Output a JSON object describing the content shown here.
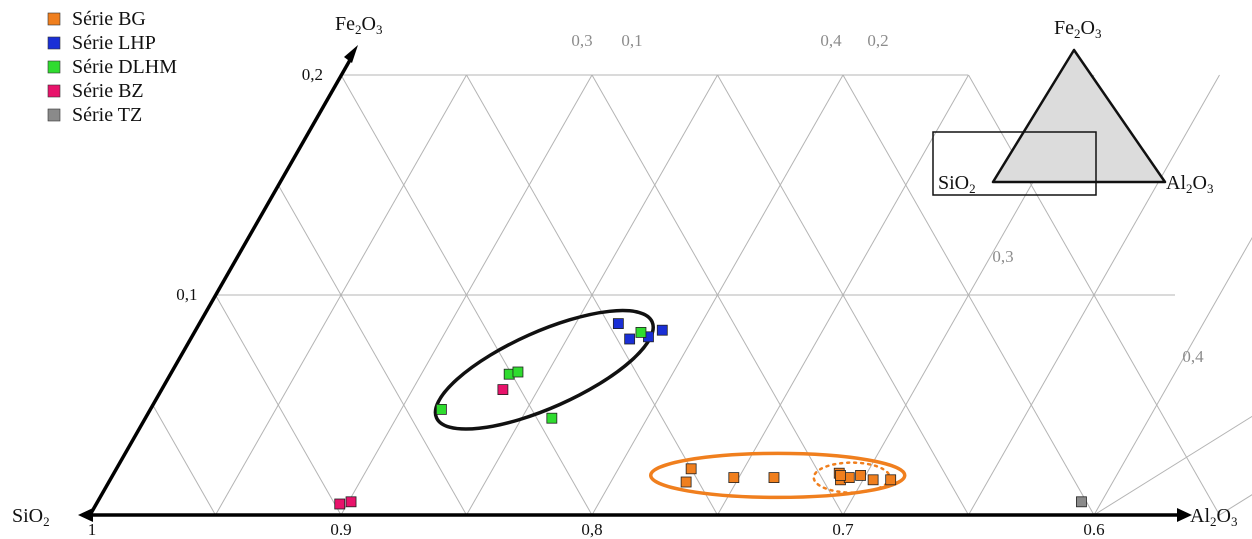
{
  "chart_data": {
    "type": "scatter",
    "coordinate_system": "ternary",
    "axes": {
      "bottom_left": {
        "label": "SiO",
        "sub": "2"
      },
      "bottom_right": {
        "label": "Al",
        "sub": "2",
        "label2": "O",
        "sub2": "3"
      },
      "top": {
        "label": "Fe",
        "sub": "2",
        "label2": "O",
        "sub2": "3"
      }
    },
    "ticks": {
      "sio2": [
        {
          "value": 1,
          "label": "1"
        },
        {
          "value": 0.9,
          "label": "0.9"
        },
        {
          "value": 0.8,
          "label": "0,8"
        },
        {
          "value": 0.7,
          "label": "0.7"
        },
        {
          "value": 0.6,
          "label": "0.6"
        }
      ],
      "fe2o3": [
        {
          "value": 0.1,
          "label": "0,1"
        },
        {
          "value": 0.2,
          "label": "0,2"
        }
      ],
      "al2o3_top": [
        {
          "value": 0.1,
          "label": "0,1"
        },
        {
          "value": 0.2,
          "label": "0,2"
        },
        {
          "value": 0.3,
          "label": "0,3"
        },
        {
          "value": 0.4,
          "label": "0,4"
        }
      ],
      "al2o3_upper": [
        {
          "value": 0.3,
          "label": "0,3"
        },
        {
          "value": 0.4,
          "label": "0,4"
        }
      ]
    },
    "series": [
      {
        "name": "Série BG",
        "color": "#f07f1e",
        "points": [
          {
            "sio2": 0.755,
            "al2o3": 0.23,
            "fe2o3": 0.015
          },
          {
            "sio2": 0.75,
            "al2o3": 0.229,
            "fe2o3": 0.021
          },
          {
            "sio2": 0.735,
            "al2o3": 0.248,
            "fe2o3": 0.017
          },
          {
            "sio2": 0.719,
            "al2o3": 0.264,
            "fe2o3": 0.017
          },
          {
            "sio2": 0.694,
            "al2o3": 0.291,
            "fe2o3": 0.016
          },
          {
            "sio2": 0.689,
            "al2o3": 0.294,
            "fe2o3": 0.017
          },
          {
            "sio2": 0.684,
            "al2o3": 0.298,
            "fe2o3": 0.018
          },
          {
            "sio2": 0.681,
            "al2o3": 0.304,
            "fe2o3": 0.016
          },
          {
            "sio2": 0.674,
            "al2o3": 0.311,
            "fe2o3": 0.016
          },
          {
            "sio2": 0.692,
            "al2o3": 0.289,
            "fe2o3": 0.019
          },
          {
            "sio2": 0.691,
            "al2o3": 0.29,
            "fe2o3": 0.018
          }
        ]
      },
      {
        "name": "Série LHP",
        "color": "#1a2fd6",
        "points": [
          {
            "sio2": 0.746,
            "al2o3": 0.167,
            "fe2o3": 0.087
          },
          {
            "sio2": 0.745,
            "al2o3": 0.175,
            "fe2o3": 0.08
          },
          {
            "sio2": 0.737,
            "al2o3": 0.182,
            "fe2o3": 0.081
          },
          {
            "sio2": 0.73,
            "al2o3": 0.186,
            "fe2o3": 0.084
          }
        ]
      },
      {
        "name": "Série DLHM",
        "color": "#2fdc2f",
        "points": [
          {
            "sio2": 0.836,
            "al2o3": 0.116,
            "fe2o3": 0.048
          },
          {
            "sio2": 0.794,
            "al2o3": 0.162,
            "fe2o3": 0.044
          },
          {
            "sio2": 0.801,
            "al2o3": 0.135,
            "fe2o3": 0.064
          },
          {
            "sio2": 0.797,
            "al2o3": 0.138,
            "fe2o3": 0.065
          },
          {
            "sio2": 0.739,
            "al2o3": 0.178,
            "fe2o3": 0.083
          }
        ]
      },
      {
        "name": "Série BZ",
        "color": "#e8136b",
        "points": [
          {
            "sio2": 0.807,
            "al2o3": 0.136,
            "fe2o3": 0.057
          },
          {
            "sio2": 0.898,
            "al2o3": 0.097,
            "fe2o3": 0.005
          },
          {
            "sio2": 0.893,
            "al2o3": 0.101,
            "fe2o3": 0.006
          }
        ]
      },
      {
        "name": "Série TZ",
        "color": "#8a8a8a",
        "points": [
          {
            "sio2": 0.602,
            "al2o3": 0.392,
            "fe2o3": 0.006
          }
        ]
      }
    ],
    "ellipses": [
      {
        "color": "#111111",
        "style": "solid",
        "center": {
          "sio2": 0.786,
          "al2o3": 0.148,
          "fe2o3": 0.066
        }
      },
      {
        "color": "#f07f1e",
        "style": "solid",
        "center": {
          "sio2": 0.717,
          "al2o3": 0.265,
          "fe2o3": 0.018
        }
      },
      {
        "color": "#f07f1e",
        "style": "dotted",
        "center": {
          "sio2": 0.688,
          "al2o3": 0.295,
          "fe2o3": 0.017
        }
      }
    ],
    "legend_position": "top-left",
    "inset": {
      "description": "ternary triangle with highlighted zoom region",
      "top": "Fe2O3",
      "left": "SiO2",
      "right": "Al2O3"
    }
  }
}
